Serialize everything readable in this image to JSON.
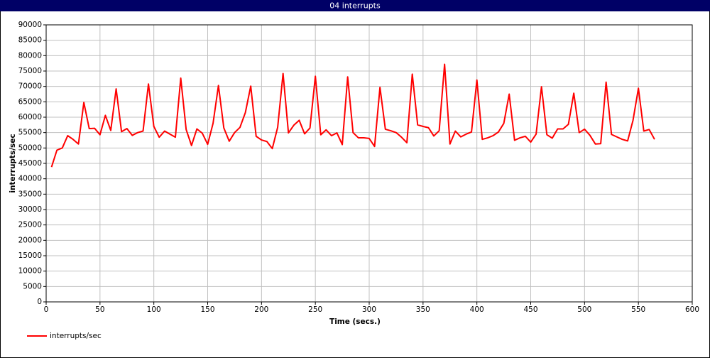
{
  "chart_data": {
    "type": "line",
    "title": "04 interrupts",
    "x_label": "Time (secs.)",
    "y_label": "interrupts/sec",
    "grid": true,
    "legend": "bottom-left",
    "xlim": [
      0,
      600
    ],
    "xticks": [
      0,
      50,
      100,
      150,
      200,
      250,
      300,
      350,
      400,
      450,
      500,
      550,
      600
    ],
    "ylim": [
      0,
      90000
    ],
    "yticks": [
      0,
      5000,
      10000,
      15000,
      20000,
      25000,
      30000,
      35000,
      40000,
      45000,
      50000,
      55000,
      60000,
      65000,
      70000,
      75000,
      80000,
      85000,
      90000
    ],
    "x": [
      5,
      10,
      15,
      20,
      25,
      30,
      35,
      40,
      45,
      50,
      55,
      60,
      65,
      70,
      75,
      80,
      85,
      90,
      95,
      100,
      105,
      110,
      115,
      120,
      125,
      130,
      135,
      140,
      145,
      150,
      155,
      160,
      165,
      170,
      175,
      180,
      185,
      190,
      195,
      200,
      205,
      210,
      215,
      220,
      225,
      230,
      235,
      240,
      245,
      250,
      255,
      260,
      265,
      270,
      275,
      280,
      285,
      290,
      295,
      300,
      305,
      310,
      315,
      320,
      325,
      330,
      335,
      340,
      345,
      350,
      355,
      360,
      365,
      370,
      375,
      380,
      385,
      390,
      395,
      400,
      405,
      410,
      415,
      420,
      425,
      430,
      435,
      440,
      445,
      450,
      455,
      460,
      465,
      470,
      475,
      480,
      485,
      490,
      495,
      500,
      505,
      510,
      515,
      520,
      525,
      530,
      535,
      540,
      545,
      550,
      555,
      560,
      565
    ],
    "series": [
      {
        "name": "interrupts/sec",
        "color": "#ff0000",
        "values": [
          43800,
          49300,
          50000,
          54000,
          52800,
          51300,
          64800,
          56300,
          56400,
          54300,
          60600,
          55700,
          69200,
          55300,
          56300,
          54100,
          55000,
          55500,
          70800,
          57000,
          53500,
          55500,
          54500,
          53500,
          72700,
          56000,
          50800,
          56200,
          54800,
          51200,
          58000,
          70300,
          56500,
          52200,
          55000,
          56700,
          61500,
          70100,
          53800,
          52600,
          52100,
          49800,
          56700,
          74200,
          54900,
          57400,
          59000,
          54600,
          56500,
          73300,
          54300,
          55900,
          54000,
          54900,
          51100,
          73100,
          55000,
          53300,
          53300,
          53100,
          50500,
          69700,
          56100,
          55600,
          55000,
          53500,
          51700,
          74000,
          57500,
          57000,
          56600,
          53900,
          55600,
          77200,
          51300,
          55500,
          53600,
          54500,
          55200,
          72100,
          52800,
          53300,
          54000,
          55200,
          58000,
          67500,
          52500,
          53300,
          53800,
          51900,
          54500,
          69900,
          54300,
          53200,
          56200,
          56200,
          57700,
          67800,
          55000,
          56100,
          54100,
          51300,
          51400,
          71400,
          54400,
          53600,
          52800,
          52300,
          59000,
          69400,
          55500,
          56000,
          52800
        ]
      }
    ]
  }
}
